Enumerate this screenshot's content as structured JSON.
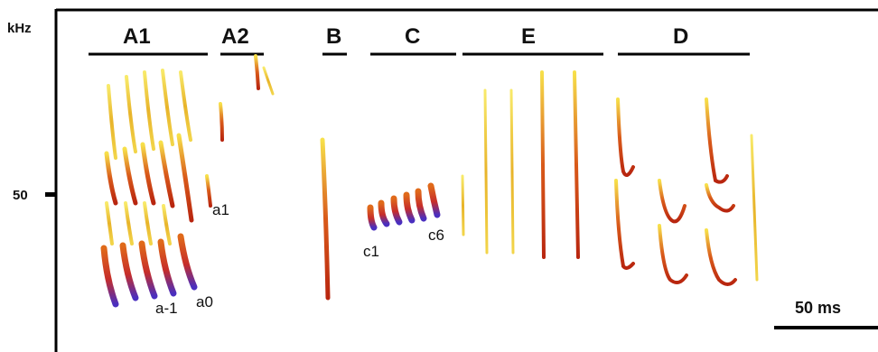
{
  "axis": {
    "unit": "kHz",
    "tick_label": "50"
  },
  "segments": [
    "A1",
    "A2",
    "B",
    "C",
    "E",
    "D"
  ],
  "annotations": [
    "a1",
    "a-1",
    "a0",
    "c1",
    "c6"
  ],
  "scale_bar": {
    "label": "50 ms"
  },
  "colors": {
    "frame": "#000000",
    "background": "#ffffff",
    "energy_low": "#f6e23b",
    "energy_mid": "#e09a1c",
    "energy_high": "#c23112",
    "energy_peak": "#4a2fbf"
  }
}
